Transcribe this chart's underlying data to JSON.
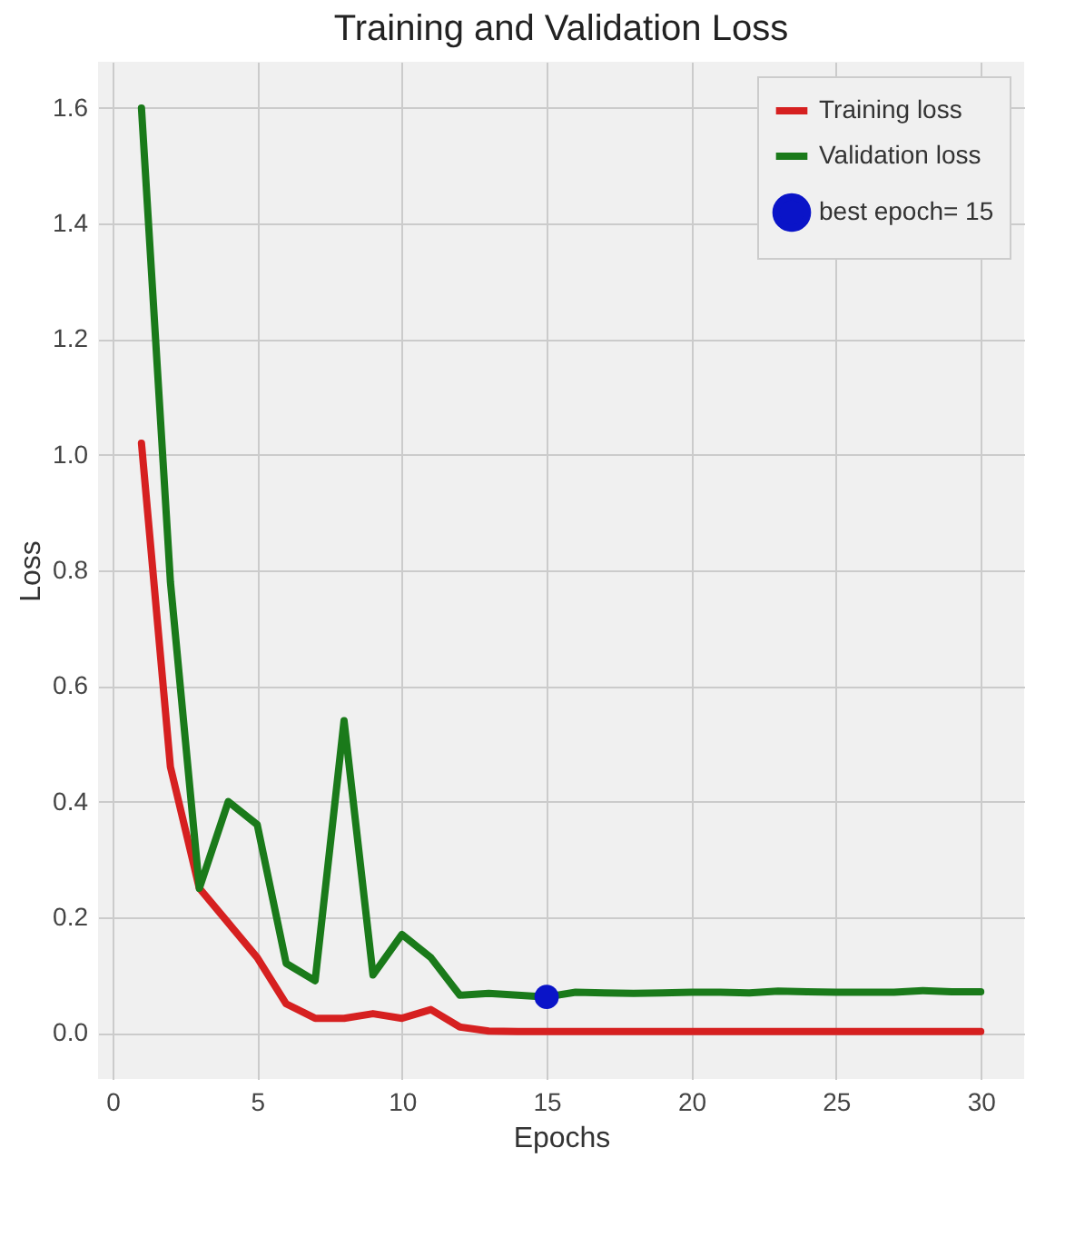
{
  "chart_data": {
    "type": "line",
    "title": "Training and Validation Loss",
    "xlabel": "Epochs",
    "ylabel": "Loss",
    "x": [
      1,
      2,
      3,
      4,
      5,
      6,
      7,
      8,
      9,
      10,
      11,
      12,
      13,
      14,
      15,
      16,
      17,
      18,
      19,
      20,
      21,
      22,
      23,
      24,
      25,
      26,
      27,
      28,
      29,
      30
    ],
    "series": [
      {
        "name": "Training loss",
        "color": "#d62020",
        "values": [
          1.02,
          0.46,
          0.25,
          0.19,
          0.13,
          0.05,
          0.025,
          0.025,
          0.033,
          0.025,
          0.04,
          0.01,
          0.003,
          0.002,
          0.002,
          0.002,
          0.002,
          0.002,
          0.002,
          0.002,
          0.002,
          0.002,
          0.002,
          0.002,
          0.002,
          0.002,
          0.002,
          0.002,
          0.002,
          0.002
        ]
      },
      {
        "name": "Validation loss",
        "color": "#1a7a1a",
        "values": [
          1.6,
          0.78,
          0.25,
          0.4,
          0.36,
          0.12,
          0.09,
          0.54,
          0.1,
          0.17,
          0.13,
          0.065,
          0.068,
          0.065,
          0.062,
          0.07,
          0.069,
          0.068,
          0.069,
          0.07,
          0.07,
          0.069,
          0.072,
          0.071,
          0.07,
          0.07,
          0.07,
          0.073,
          0.071,
          0.071
        ]
      },
      {
        "name": "best epoch= 15",
        "type": "scatter",
        "marker": "circle",
        "color": "#0a14c8",
        "x": [
          15
        ],
        "values": [
          0.062
        ]
      }
    ],
    "xlim": [
      -0.5,
      31.5
    ],
    "xticks": [
      0,
      5,
      10,
      15,
      20,
      25,
      30
    ],
    "ylim": [
      -0.08,
      1.68
    ],
    "yticks": [
      {
        "value": 0,
        "label": "0.0"
      },
      0.2,
      0.4,
      0.6,
      0.8,
      {
        "value": 1,
        "label": "1.0"
      },
      1.2,
      1.4,
      1.6
    ],
    "grid": true,
    "legend": "top right",
    "line_style": "solid"
  }
}
